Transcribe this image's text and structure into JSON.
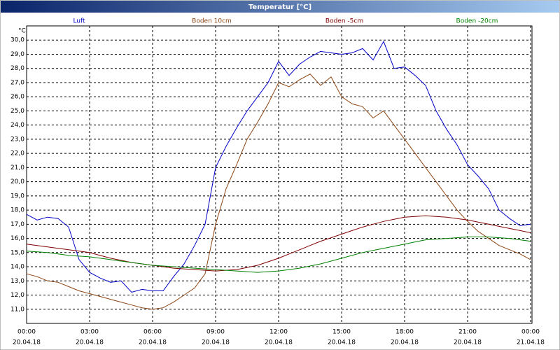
{
  "chart_data": {
    "type": "line",
    "title": "Temperatur [°C]",
    "y_unit": "°C",
    "x": [
      0,
      0.5,
      1,
      1.5,
      2,
      2.5,
      3,
      3.5,
      4,
      4.5,
      5,
      5.5,
      6,
      6.5,
      7,
      7.5,
      8,
      8.5,
      9,
      9.5,
      10,
      10.5,
      11,
      11.5,
      12,
      12.5,
      13,
      13.5,
      14,
      14.5,
      15,
      15.5,
      16,
      16.5,
      17,
      17.5,
      18,
      18.5,
      19,
      19.5,
      20,
      20.5,
      21,
      21.5,
      22,
      22.5,
      23,
      23.5,
      24
    ],
    "series": [
      {
        "name": "Luft",
        "color": "#0000c8",
        "values": [
          17.7,
          17.3,
          17.5,
          17.4,
          16.8,
          14.5,
          13.6,
          13.2,
          12.9,
          13.0,
          12.2,
          12.4,
          12.3,
          12.3,
          13.3,
          14.2,
          15.5,
          17.0,
          21.0,
          22.5,
          23.8,
          25.0,
          26.0,
          27.0,
          28.5,
          27.5,
          28.3,
          28.8,
          29.2,
          29.1,
          29.0,
          29.1,
          29.4,
          28.6,
          29.9,
          28.0,
          28.1,
          27.5,
          26.8,
          25.0,
          23.7,
          22.6,
          21.2,
          20.4,
          19.5,
          18.0,
          17.4,
          16.9,
          17.0
        ]
      },
      {
        "name": "Boden 10cm",
        "color": "#8b4513",
        "values": [
          13.5,
          13.3,
          13.0,
          12.9,
          12.6,
          12.3,
          12.1,
          11.9,
          11.7,
          11.5,
          11.3,
          11.1,
          11.0,
          11.1,
          11.5,
          12.0,
          12.5,
          13.5,
          17.0,
          19.5,
          21.2,
          23.0,
          24.2,
          25.5,
          27.0,
          26.7,
          27.2,
          27.6,
          26.8,
          27.4,
          26.0,
          25.5,
          25.3,
          24.5,
          25.0,
          24.0,
          23.0,
          22.0,
          21.0,
          20.0,
          19.0,
          18.0,
          17.2,
          16.5,
          16.0,
          15.5,
          15.2,
          14.9,
          14.5
        ]
      },
      {
        "name": "Boden -5cm",
        "color": "#800000",
        "values": [
          15.6,
          15.5,
          15.4,
          15.3,
          15.2,
          15.1,
          15.0,
          14.8,
          14.6,
          14.45,
          14.3,
          14.2,
          14.1,
          14.0,
          13.9,
          13.85,
          13.8,
          13.75,
          13.7,
          13.75,
          13.8,
          13.95,
          14.1,
          14.35,
          14.6,
          14.9,
          15.2,
          15.5,
          15.8,
          16.05,
          16.3,
          16.55,
          16.8,
          17.0,
          17.2,
          17.35,
          17.5,
          17.55,
          17.6,
          17.55,
          17.5,
          17.4,
          17.3,
          17.15,
          17.0,
          16.85,
          16.7,
          16.55,
          16.4
        ]
      },
      {
        "name": "Boden -20cm",
        "color": "#008000",
        "values": [
          15.1,
          15.05,
          15.0,
          14.9,
          14.8,
          14.75,
          14.7,
          14.6,
          14.5,
          14.4,
          14.3,
          14.2,
          14.1,
          14.05,
          14.0,
          13.95,
          13.9,
          13.85,
          13.8,
          13.75,
          13.7,
          13.65,
          13.6,
          13.65,
          13.7,
          13.8,
          13.9,
          14.05,
          14.2,
          14.4,
          14.6,
          14.8,
          15.0,
          15.15,
          15.3,
          15.45,
          15.6,
          15.75,
          15.9,
          15.95,
          16.0,
          16.05,
          16.1,
          16.1,
          16.1,
          16.05,
          16.0,
          15.9,
          15.8
        ]
      }
    ],
    "xlim": [
      0,
      24
    ],
    "xticks": [
      {
        "value": 0,
        "label": "00:00"
      },
      {
        "value": 3,
        "label": "03:00"
      },
      {
        "value": 6,
        "label": "06:00"
      },
      {
        "value": 9,
        "label": "09:00"
      },
      {
        "value": 12,
        "label": "12:00"
      },
      {
        "value": 15,
        "label": "15:00"
      },
      {
        "value": 18,
        "label": "18:00"
      },
      {
        "value": 21,
        "label": "21:00"
      },
      {
        "value": 24,
        "label": "00:00"
      }
    ],
    "xtick_dates": [
      "20.04.18",
      "20.04.18",
      "20.04.18",
      "20.04.18",
      "20.04.18",
      "20.04.18",
      "20.04.18",
      "20.04.18",
      "21.04.18"
    ],
    "ylim": [
      10,
      31
    ],
    "yticks": [
      {
        "value": 11,
        "label": "11,0"
      },
      {
        "value": 12,
        "label": "12,0"
      },
      {
        "value": 13,
        "label": "13,0"
      },
      {
        "value": 14,
        "label": "14,0"
      },
      {
        "value": 15,
        "label": "15,0"
      },
      {
        "value": 16,
        "label": "16,0"
      },
      {
        "value": 17,
        "label": "17,0"
      },
      {
        "value": 18,
        "label": "18,0"
      },
      {
        "value": 19,
        "label": "19,0"
      },
      {
        "value": 20,
        "label": "20,0"
      },
      {
        "value": 21,
        "label": "21,0"
      },
      {
        "value": 22,
        "label": "22,0"
      },
      {
        "value": 23,
        "label": "23,0"
      },
      {
        "value": 24,
        "label": "24,0"
      },
      {
        "value": 25,
        "label": "25,0"
      },
      {
        "value": 26,
        "label": "26,0"
      },
      {
        "value": 27,
        "label": "27,0"
      },
      {
        "value": 28,
        "label": "28,0"
      },
      {
        "value": 29,
        "label": "29,0"
      },
      {
        "value": 30,
        "label": "30,0"
      }
    ],
    "grid": true
  }
}
